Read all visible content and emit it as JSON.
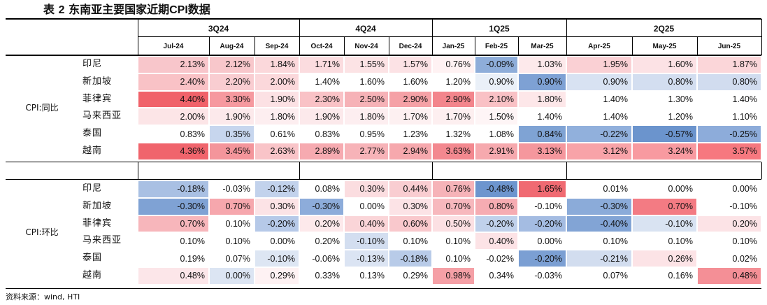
{
  "title": {
    "prefix": "表",
    "num": "2",
    "text_a": "东南亚主要国家近期",
    "cpi": "CPI",
    "text_b": "数据"
  },
  "quarters": [
    "3Q24",
    "4Q24",
    "1Q25",
    "2Q25"
  ],
  "months": [
    "Jul-24",
    "Aug-24",
    "Sep-24",
    "Oct-24",
    "Nov-24",
    "Dec-24",
    "Jan-25",
    "Feb-25",
    "Mar-25",
    "Apr-25",
    "May-25",
    "Jun-25"
  ],
  "countries": [
    "印尼",
    "新加坡",
    "菲律宾",
    "马来西亚",
    "泰国",
    "越南"
  ],
  "groups": [
    {
      "label": "CPI:同比",
      "rows": [
        [
          "2.13%",
          "2.12%",
          "1.84%",
          "1.71%",
          "1.55%",
          "1.57%",
          "0.76%",
          "-0.09%",
          "1.03%",
          "1.95%",
          "1.60%",
          "1.87%"
        ],
        [
          "2.40%",
          "2.20%",
          "2.00%",
          "1.40%",
          "1.60%",
          "1.60%",
          "1.20%",
          "0.90%",
          "0.90%",
          "0.90%",
          "0.80%",
          "0.80%"
        ],
        [
          "4.40%",
          "3.30%",
          "1.90%",
          "2.30%",
          "2.50%",
          "2.90%",
          "2.90%",
          "2.10%",
          "1.80%",
          "1.40%",
          "1.30%",
          "1.40%"
        ],
        [
          "2.00%",
          "1.90%",
          "1.80%",
          "1.90%",
          "1.80%",
          "1.70%",
          "1.70%",
          "1.50%",
          "1.40%",
          "1.40%",
          "1.20%",
          "1.10%"
        ],
        [
          "0.83%",
          "0.35%",
          "0.61%",
          "0.83%",
          "0.95%",
          "1.23%",
          "1.32%",
          "1.08%",
          "0.84%",
          "-0.22%",
          "-0.57%",
          "-0.25%"
        ],
        [
          "4.36%",
          "3.45%",
          "2.63%",
          "2.89%",
          "2.77%",
          "2.94%",
          "3.63%",
          "2.91%",
          "3.13%",
          "3.12%",
          "3.24%",
          "3.57%"
        ]
      ],
      "colors": [
        [
          "#f8c6cb",
          "#f8c7cb",
          "#fbd8db",
          "#fbdcdf",
          "#fce3e5",
          "#fce2e5",
          "#fff2f3",
          "#8eadd9",
          "#fde9eb",
          "#fad0d4",
          "#fce2e5",
          "#fbd6d9"
        ],
        [
          "#f9c2c6",
          "#f9cdd1",
          "#fbd8db",
          "#ffffff",
          "#ffffff",
          "#ffffff",
          "#ffffff",
          "#eaf0f8",
          "#7ea1d4",
          "#d8e2f2",
          "#d3def0",
          "#d1dcef"
        ],
        [
          "#f0626a",
          "#f6999f",
          "#fce1e4",
          "#f9c2c6",
          "#f6b2b7",
          "#f5a1a6",
          "#f3858c",
          "#f9c1c5",
          "#fde7e9",
          "#ffffff",
          "#ffffff",
          "#ffffff"
        ],
        [
          "#fce5e7",
          "#fce9eb",
          "#fdeef0",
          "#fce9eb",
          "#fdeef0",
          "#fdf0f1",
          "#fdeff0",
          "#fef5f6",
          "#ffffff",
          "#ffffff",
          "#ffffff",
          "#ffffff"
        ],
        [
          "#ffffff",
          "#c7d6ee",
          "#ffffff",
          "#ffffff",
          "#ffffff",
          "#ffffff",
          "#ffffff",
          "#ffffff",
          "#7fa3d4",
          "#91b0dc",
          "#6b94cd",
          "#8dacda"
        ],
        [
          "#f0646c",
          "#f4959b",
          "#f9c4c8",
          "#f6aab0",
          "#f7b3b8",
          "#f6a8ad",
          "#f3888f",
          "#f6a9ae",
          "#f5979d",
          "#f8a3a8",
          "#f89aa0",
          "#f6787f"
        ]
      ]
    },
    {
      "label": "CPI:环比",
      "rows": [
        [
          "-0.18%",
          "-0.03%",
          "-0.12%",
          "0.08%",
          "0.30%",
          "0.44%",
          "0.76%",
          "-0.48%",
          "1.65%",
          "0.01%",
          "0.00%",
          "0.00%"
        ],
        [
          "-0.30%",
          "0.70%",
          "0.30%",
          "-0.30%",
          "0.00%",
          "0.30%",
          "0.70%",
          "0.80%",
          "-0.10%",
          "-0.30%",
          "0.70%",
          "-0.10%"
        ],
        [
          "0.70%",
          "0.10%",
          "-0.20%",
          "0.20%",
          "0.40%",
          "0.60%",
          "0.50%",
          "-0.20%",
          "-0.20%",
          "-0.40%",
          "-0.10%",
          "0.20%"
        ],
        [
          "0.10%",
          "0.10%",
          "0.00%",
          "0.20%",
          "-0.10%",
          "0.10%",
          "0.10%",
          "0.40%",
          "0.00%",
          "0.10%",
          "0.10%",
          "0.10%"
        ],
        [
          "0.19%",
          "0.07%",
          "-0.10%",
          "-0.06%",
          "-0.13%",
          "-0.18%",
          "0.10%",
          "-0.02%",
          "-0.20%",
          "-0.21%",
          "0.26%",
          "0.02%"
        ],
        [
          "0.48%",
          "0.00%",
          "0.29%",
          "0.33%",
          "0.13%",
          "0.29%",
          "0.98%",
          "0.34%",
          "-0.03%",
          "0.07%",
          "0.16%",
          "0.48%"
        ]
      ],
      "colors": [
        [
          "#a9c0e3",
          "#ffffff",
          "#c2d2ec",
          "#ffffff",
          "#fbdde0",
          "#f9cdd1",
          "#f6b3b8",
          "#6d95ce",
          "#f06a72",
          "#ffffff",
          "#ffffff",
          "#ffffff"
        ],
        [
          "#7fa2d4",
          "#f6a7ad",
          "#fce3e6",
          "#8dacda",
          "#ffffff",
          "#fce3e6",
          "#f7b8bd",
          "#f6acb2",
          "#ffffff",
          "#8babd9",
          "#f37b83",
          "#ffffff"
        ],
        [
          "#f7b6bb",
          "#ffffff",
          "#b6c9e8",
          "#fde9eb",
          "#fad5d8",
          "#f9c8cc",
          "#fce0e3",
          "#c0d1eb",
          "#a4bce2",
          "#82a4d5",
          "#d9e3f2",
          "#fce3e6"
        ],
        [
          "#ffffff",
          "#ffffff",
          "#ffffff",
          "#ffffff",
          "#d3def0",
          "#ffffff",
          "#ffffff",
          "#fce3e6",
          "#ffffff",
          "#ffffff",
          "#ffffff",
          "#ffffff"
        ],
        [
          "#ffffff",
          "#ffffff",
          "#dde6f3",
          "#ffffff",
          "#dbe4f3",
          "#b8cbe8",
          "#ffffff",
          "#ffffff",
          "#7b9fd3",
          "#d2ddef",
          "#fce3e6",
          "#ffffff"
        ],
        [
          "#fce6e9",
          "#dce5f3",
          "#fef2f3",
          "#ffffff",
          "#ffffff",
          "#ffffff",
          "#f5a0a6",
          "#ffffff",
          "#ffffff",
          "#ffffff",
          "#ffffff",
          "#f48f96"
        ]
      ]
    }
  ],
  "source": "资料来源：wind, HTI"
}
